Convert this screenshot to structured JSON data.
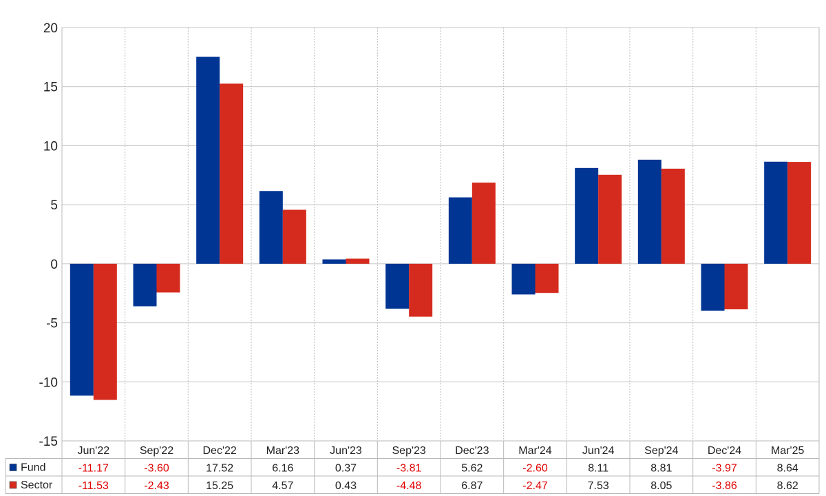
{
  "chart_data": {
    "type": "bar",
    "categories": [
      "Jun'22",
      "Sep'22",
      "Dec'22",
      "Mar'23",
      "Jun'23",
      "Sep'23",
      "Dec'23",
      "Mar'24",
      "Jun'24",
      "Sep'24",
      "Dec'24",
      "Mar'25"
    ],
    "series": [
      {
        "name": "Fund",
        "color": "#003594",
        "values": [
          -11.17,
          -3.6,
          17.52,
          6.16,
          0.37,
          -3.81,
          5.62,
          -2.6,
          8.11,
          8.81,
          -3.97,
          8.64
        ]
      },
      {
        "name": "Sector",
        "color": "#d52b1e",
        "values": [
          -11.53,
          -2.43,
          15.25,
          4.57,
          0.43,
          -4.48,
          6.87,
          -2.47,
          7.53,
          8.05,
          -3.86,
          8.62
        ]
      }
    ],
    "ylim": [
      -15,
      20
    ],
    "yticks": [
      20,
      15,
      10,
      5,
      0,
      -5,
      -10,
      -15
    ],
    "grid": true,
    "legend": "table-below",
    "negative_color": "#e00000",
    "positive_color": "#222222"
  }
}
